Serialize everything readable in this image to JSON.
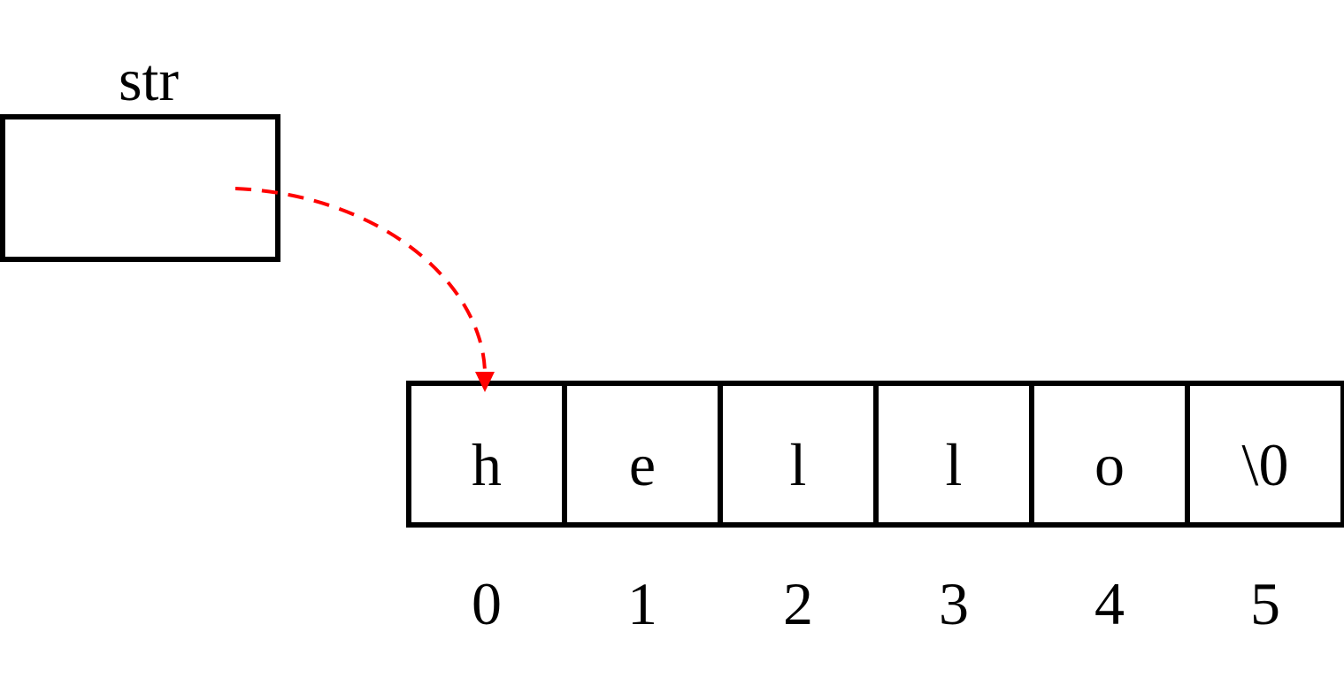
{
  "pointer": {
    "label": "str"
  },
  "array": {
    "cells": [
      {
        "char": "h",
        "index": "0"
      },
      {
        "char": "e",
        "index": "1"
      },
      {
        "char": "l",
        "index": "2"
      },
      {
        "char": "l",
        "index": "3"
      },
      {
        "char": "o",
        "index": "4"
      },
      {
        "char": "\\0",
        "index": "5"
      }
    ]
  },
  "arrow": {
    "target_index": 0,
    "color": "#ff0000",
    "style": "dashed"
  },
  "colors": {
    "stroke": "#000000",
    "background": "#ffffff"
  }
}
